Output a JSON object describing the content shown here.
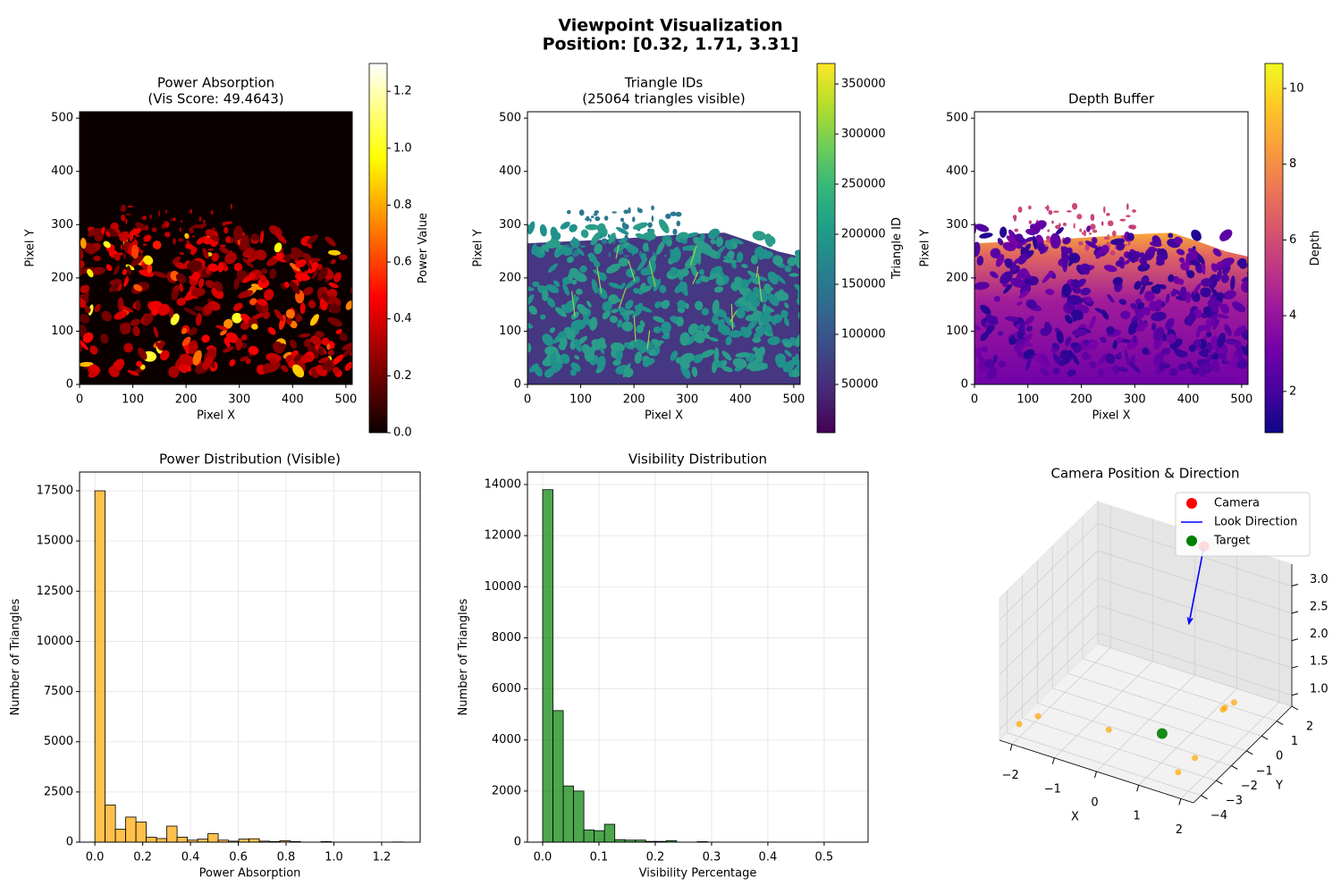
{
  "title": "Viewpoint Visualization",
  "subtitle": "Position: [0.32, 1.71, 3.31]",
  "chart_data": [
    {
      "type": "image",
      "title": "Power Absorption",
      "subtitle": "(Vis Score: 49.4643)",
      "xlabel": "Pixel X",
      "ylabel": "Pixel Y",
      "xlim": [
        0,
        512
      ],
      "ylim": [
        0,
        512
      ],
      "xticks": [
        0,
        100,
        200,
        300,
        400,
        500
      ],
      "yticks": [
        0,
        100,
        200,
        300,
        400,
        500
      ],
      "cmap": "hot",
      "clabel": "Power Value",
      "clim": [
        0,
        1.298
      ],
      "cticks": [
        {
          "value": 0,
          "label": "0.0"
        },
        0.2,
        0.4,
        0.6,
        0.8,
        {
          "value": 1,
          "label": "1.0"
        },
        1.2
      ]
    },
    {
      "type": "image",
      "title": "Triangle IDs",
      "subtitle": "(25064 triangles visible)",
      "xlabel": "Pixel X",
      "ylabel": "Pixel Y",
      "xlim": [
        0,
        512
      ],
      "ylim": [
        0,
        512
      ],
      "xticks": [
        0,
        100,
        200,
        300,
        400,
        500
      ],
      "yticks": [
        0,
        100,
        200,
        300,
        400,
        500
      ],
      "cmap": "viridis",
      "clabel": "Triangle ID",
      "clim": [
        1800,
        370500
      ],
      "cticks": [
        50000,
        100000,
        150000,
        200000,
        250000,
        300000,
        350000
      ]
    },
    {
      "type": "image",
      "title": "Depth Buffer",
      "xlabel": "Pixel X",
      "ylabel": "Pixel Y",
      "xlim": [
        0,
        512
      ],
      "ylim": [
        0,
        512
      ],
      "xticks": [
        0,
        100,
        200,
        300,
        400,
        500
      ],
      "yticks": [
        0,
        100,
        200,
        300,
        400,
        500
      ],
      "cmap": "plasma",
      "clabel": "Depth",
      "clim": [
        0.91,
        10.66
      ],
      "cticks": [
        2,
        4,
        6,
        8,
        10
      ]
    },
    {
      "type": "histogram",
      "title": "Power Distribution (Visible)",
      "xlabel": "Power Absorption",
      "ylabel": "Number of Triangles",
      "bins": [
        0,
        0.043,
        0.086,
        0.129,
        0.172,
        0.215,
        0.258,
        0.301,
        0.344,
        0.387,
        0.43,
        0.473,
        0.516,
        0.559,
        0.602,
        0.645,
        0.688,
        0.731,
        0.774,
        0.817,
        0.86,
        0.903,
        0.946,
        0.989,
        1.032,
        1.075,
        1.118,
        1.161,
        1.204,
        1.247,
        1.29
      ],
      "values": [
        17500,
        1850,
        650,
        1250,
        1000,
        250,
        180,
        800,
        250,
        100,
        150,
        420,
        100,
        50,
        150,
        170,
        50,
        30,
        70,
        30,
        0,
        0,
        30,
        0,
        0,
        0,
        0,
        0,
        0,
        10
      ],
      "color": "orange",
      "alpha": 0.7,
      "edgecolor": "black",
      "xlim": [
        -0.064,
        1.361
      ],
      "ylim": [
        0,
        18436
      ],
      "xticks": [
        {
          "value": 0,
          "label": "0.0"
        },
        0.2,
        0.4,
        0.6,
        0.8,
        {
          "value": 1,
          "label": "1.0"
        },
        1.2
      ],
      "yticks": [
        0,
        2500,
        5000,
        7500,
        10000,
        12500,
        15000,
        17500
      ],
      "grid": true
    },
    {
      "type": "histogram",
      "title": "Visibility Distribution",
      "xlabel": "Visibility Percentage",
      "ylabel": "Number of Triangles",
      "bins": [
        0,
        0.0183,
        0.0366,
        0.0549,
        0.0732,
        0.0915,
        0.1098,
        0.1281,
        0.1464,
        0.1647,
        0.183,
        0.2013,
        0.2196,
        0.2379,
        0.2562,
        0.2745,
        0.2928,
        0.3111,
        0.3294,
        0.3477,
        0.366,
        0.3843,
        0.4026,
        0.4209,
        0.4392,
        0.4575,
        0.4758,
        0.4941,
        0.5124,
        0.5307,
        0.549
      ],
      "values": [
        13800,
        5150,
        2200,
        2000,
        480,
        450,
        700,
        100,
        80,
        80,
        30,
        30,
        60,
        0,
        0,
        20,
        0,
        0,
        0,
        0,
        0,
        0,
        0,
        0,
        0,
        0,
        0,
        0,
        0,
        0
      ],
      "color": "green",
      "alpha": 0.7,
      "edgecolor": "black",
      "xlim": [
        -0.027,
        0.578
      ],
      "ylim": [
        0,
        14490
      ],
      "xticks": [
        {
          "value": 0,
          "label": "0.0"
        },
        0.1,
        0.2,
        0.3,
        0.4,
        0.5
      ],
      "yticks": [
        0,
        2000,
        4000,
        6000,
        8000,
        10000,
        12000,
        14000
      ],
      "grid": true
    },
    {
      "type": "scatter3d",
      "title": "Camera Position & Direction",
      "xlabel": "X",
      "ylabel": "Y",
      "xlim": [
        -2.3,
        2.3
      ],
      "ylim": [
        -4.5,
        2
      ],
      "zlim": [
        0.8,
        3.4
      ],
      "xticks": [
        {
          "value": -2,
          "label": "−2"
        },
        {
          "value": -1,
          "label": "−1"
        },
        0,
        1,
        2
      ],
      "yticks": [
        {
          "value": -4,
          "label": "−4"
        },
        {
          "value": -3,
          "label": "−3"
        },
        {
          "value": -2,
          "label": "−2"
        },
        {
          "value": -1,
          "label": "−1"
        },
        0,
        1,
        2
      ],
      "zticks": [
        {
          "value": 1,
          "label": "1.0"
        },
        1.5,
        {
          "value": 2,
          "label": "2.0"
        },
        2.5,
        {
          "value": 3,
          "label": "3.0"
        }
      ],
      "legend": "upper right",
      "series": [
        {
          "name": "Camera",
          "kind": "scatter",
          "color": "red",
          "x": [
            0.32
          ],
          "y": [
            1.71
          ],
          "z": [
            3.31
          ]
        },
        {
          "name": "Look Direction",
          "kind": "line",
          "color": "blue",
          "x": [
            0.32,
            0.35
          ],
          "y": [
            1.71,
            0.64
          ],
          "z": [
            3.31,
            2.2
          ]
        },
        {
          "name": "Target",
          "kind": "scatter",
          "color": "green",
          "x": [
            0.58
          ],
          "y": [
            -1.78
          ],
          "z": [
            0.9
          ]
        },
        {
          "kind": "scatter",
          "color": "orange",
          "x": [
            -2.14,
            -1.95,
            -0.44,
            1.57,
            1.61,
            1.23,
            1.23,
            1.3
          ],
          "y": [
            -3.64,
            -2.93,
            -2.46,
            -3.48,
            -2.48,
            0.43,
            0.55,
            0.97
          ],
          "z": [
            0.9,
            0.9,
            0.9,
            0.9,
            0.9,
            0.9,
            0.9,
            0.9
          ]
        }
      ]
    }
  ]
}
